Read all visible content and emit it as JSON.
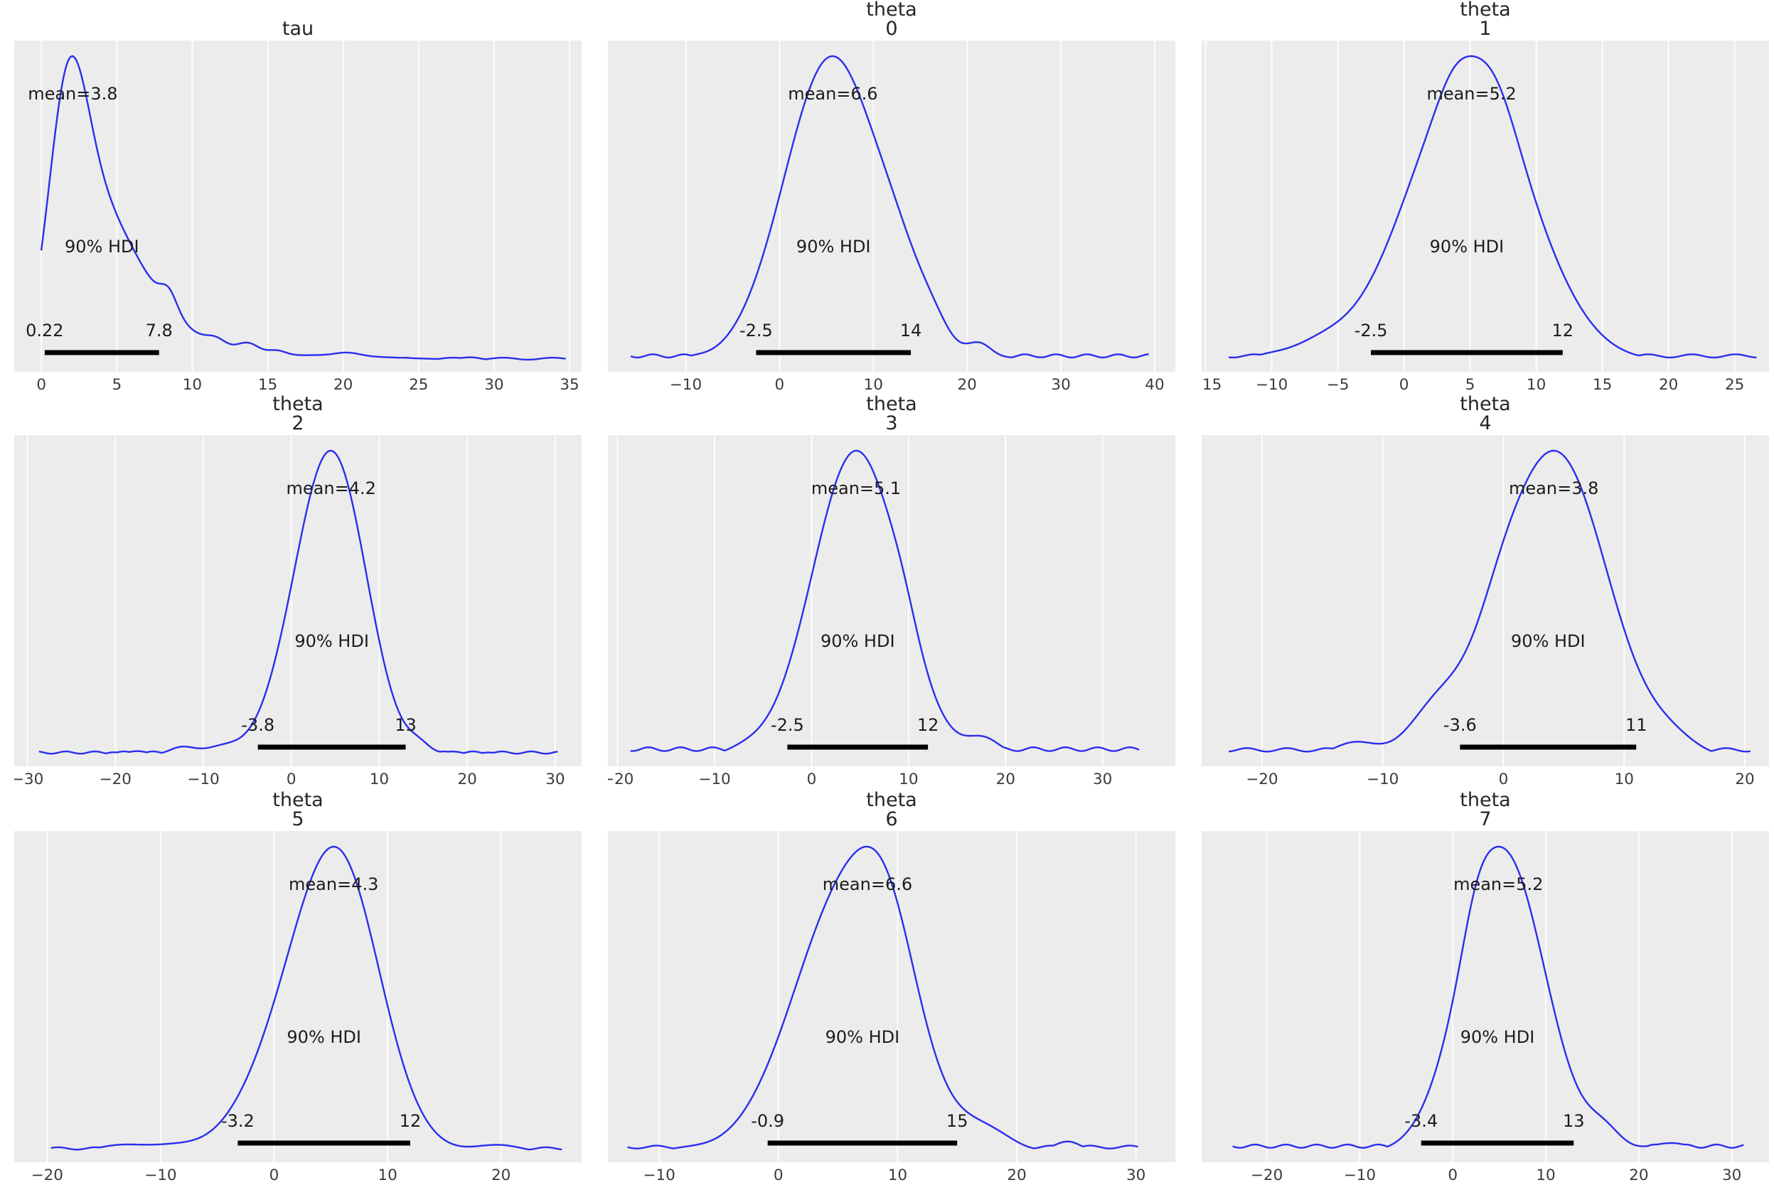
{
  "figure": {
    "background": "#ffffff",
    "plot_bg": "#ececec",
    "grid_color": "#ffffff",
    "curve_color": "#2a2eec",
    "hdi_bar_color": "#000000",
    "annotation_color": "#1c1c1c",
    "tick_color": "#3b3b3b",
    "title_color": "#262626"
  },
  "chart_data": {
    "type": "line",
    "title": "",
    "xlabel": "",
    "ylabel": "",
    "grid": "vertical-white-gridlines",
    "legend_position": "none",
    "plots": [
      {
        "title_lines": [
          "tau"
        ],
        "mean": 3.8,
        "mean_label": "mean=3.8",
        "hdi_text": "90% HDI",
        "hdi_90": [
          0.22,
          7.8
        ],
        "hdi_labels": [
          "0.22",
          "7.8"
        ],
        "x_ticks": [
          0,
          5,
          10,
          15,
          20,
          25,
          30,
          35
        ],
        "x_tick_labels": [
          "0",
          "5",
          "10",
          "15",
          "20",
          "25",
          "30",
          "35"
        ],
        "xlim": [
          -1.8,
          35.8
        ],
        "curve_domain": [
          0.0,
          34.7
        ],
        "floor": 0.02,
        "kde_components": [
          {
            "mu": 1.7,
            "s": 1.3,
            "w": 1.0
          },
          {
            "mu": 3.6,
            "s": 1.8,
            "w": 0.5
          },
          {
            "mu": 6.2,
            "s": 2.0,
            "w": 0.26
          },
          {
            "mu": 8.45,
            "s": 0.55,
            "w": 0.08
          },
          {
            "mu": 9.2,
            "s": 2.4,
            "w": 0.1
          },
          {
            "mu": 11.6,
            "s": 0.65,
            "w": 0.035
          },
          {
            "mu": 13.7,
            "s": 0.75,
            "w": 0.05
          },
          {
            "mu": 15.6,
            "s": 0.6,
            "w": 0.022
          },
          {
            "mu": 17.0,
            "s": 4.0,
            "w": 0.025
          },
          {
            "mu": 20.3,
            "s": 0.8,
            "w": 0.014
          },
          {
            "mu": 24.0,
            "s": 6.0,
            "w": 0.018
          },
          {
            "mu": 28.5,
            "s": 0.7,
            "w": 0.012
          }
        ]
      },
      {
        "title_lines": [
          "theta",
          "0"
        ],
        "mean": 6.6,
        "mean_label": "mean=6.6",
        "hdi_text": "90% HDI",
        "hdi_90": [
          -2.5,
          14
        ],
        "hdi_labels": [
          "-2.5",
          "14"
        ],
        "x_ticks": [
          -10,
          0,
          10,
          20,
          30,
          40
        ],
        "x_tick_labels": [
          "−10",
          "0",
          "10",
          "20",
          "30",
          "40"
        ],
        "xlim": [
          -18.3,
          42.2
        ],
        "curve_domain": [
          -15.8,
          39.3
        ],
        "floor": 0.024,
        "kde_components": [
          {
            "mu": 5.6,
            "s": 5.1,
            "w": 1.0
          },
          {
            "mu": 13.0,
            "s": 2.5,
            "w": 0.12
          },
          {
            "mu": 16.5,
            "s": 1.8,
            "w": 0.06
          },
          {
            "mu": 21.3,
            "s": 1.3,
            "w": 0.05
          },
          {
            "mu": 27.0,
            "s": 4.0,
            "w": 0.02
          },
          {
            "mu": 33.5,
            "s": 1.5,
            "w": 0.014
          },
          {
            "mu": -9.5,
            "s": 1.5,
            "w": 0.012
          }
        ]
      },
      {
        "title_lines": [
          "theta",
          "1"
        ],
        "mean": 5.2,
        "mean_label": "mean=5.2",
        "hdi_text": "90% HDI",
        "hdi_90": [
          -2.5,
          12
        ],
        "hdi_labels": [
          "-2.5",
          "12"
        ],
        "x_ticks": [
          -15,
          -10,
          -5,
          0,
          5,
          10,
          15,
          20,
          25
        ],
        "x_tick_labels": [
          "−15",
          "−10",
          "−5",
          "0",
          "5",
          "10",
          "15",
          "20",
          "25"
        ],
        "xlim": [
          -15.3,
          27.6
        ],
        "curve_domain": [
          -13.2,
          26.6
        ],
        "floor": 0.026,
        "kde_components": [
          {
            "mu": 4.9,
            "s": 4.7,
            "w": 1.0
          },
          {
            "mu": 6.8,
            "s": 1.6,
            "w": 0.1
          },
          {
            "mu": 3.8,
            "s": 1.2,
            "w": 0.06
          },
          {
            "mu": -6.5,
            "s": 2.2,
            "w": 0.05
          },
          {
            "mu": -10.5,
            "s": 1.5,
            "w": 0.02
          },
          {
            "mu": 22.0,
            "s": 2.5,
            "w": 0.015
          }
        ]
      },
      {
        "title_lines": [
          "theta",
          "2"
        ],
        "mean": 4.2,
        "mean_label": "mean=4.2",
        "hdi_text": "90% HDI",
        "hdi_90": [
          -3.8,
          13
        ],
        "hdi_labels": [
          "-3.8",
          "13"
        ],
        "x_ticks": [
          -30,
          -20,
          -10,
          0,
          10,
          20,
          30
        ],
        "x_tick_labels": [
          "−30",
          "−20",
          "−10",
          "0",
          "10",
          "20",
          "30"
        ],
        "xlim": [
          -31.5,
          33.0
        ],
        "curve_domain": [
          -28.6,
          30.2
        ],
        "floor": 0.028,
        "kde_components": [
          {
            "mu": 2.9,
            "s": 3.9,
            "w": 0.92
          },
          {
            "mu": 5.9,
            "s": 3.6,
            "w": 0.86
          },
          {
            "mu": -8.0,
            "s": 2.0,
            "w": 0.05
          },
          {
            "mu": -12.5,
            "s": 1.6,
            "w": 0.055
          },
          {
            "mu": -17.5,
            "s": 1.4,
            "w": 0.035
          },
          {
            "mu": -20.5,
            "s": 1.0,
            "w": 0.025
          },
          {
            "mu": 14.6,
            "s": 1.3,
            "w": 0.05
          },
          {
            "mu": 18.5,
            "s": 1.2,
            "w": 0.03
          },
          {
            "mu": 22.5,
            "s": 1.5,
            "w": 0.028
          },
          {
            "mu": 27.5,
            "s": 1.3,
            "w": 0.022
          }
        ]
      },
      {
        "title_lines": [
          "theta",
          "3"
        ],
        "mean": 5.1,
        "mean_label": "mean=5.1",
        "hdi_text": "90% HDI",
        "hdi_90": [
          -2.5,
          12
        ],
        "hdi_labels": [
          "-2.5",
          "12"
        ],
        "x_ticks": [
          -20,
          -10,
          0,
          10,
          20,
          30
        ],
        "x_tick_labels": [
          "−20",
          "−10",
          "0",
          "10",
          "20",
          "30"
        ],
        "xlim": [
          -21.0,
          37.5
        ],
        "curve_domain": [
          -18.6,
          33.7
        ],
        "floor": 0.028,
        "kde_components": [
          {
            "mu": 4.6,
            "s": 4.5,
            "w": 1.0
          },
          {
            "mu": 9.5,
            "s": 1.5,
            "w": 0.05
          },
          {
            "mu": 17.8,
            "s": 1.7,
            "w": 0.055
          },
          {
            "mu": -7.0,
            "s": 2.0,
            "w": 0.02
          },
          {
            "mu": 25.0,
            "s": 3.0,
            "w": 0.012
          }
        ]
      },
      {
        "title_lines": [
          "theta",
          "4"
        ],
        "mean": 3.8,
        "mean_label": "mean=3.8",
        "hdi_text": "90% HDI",
        "hdi_90": [
          -3.6,
          11
        ],
        "hdi_labels": [
          "-3.6",
          "11"
        ],
        "x_ticks": [
          -20,
          -10,
          0,
          10,
          20
        ],
        "x_tick_labels": [
          "−20",
          "−10",
          "0",
          "10",
          "20"
        ],
        "xlim": [
          -25.0,
          22.0
        ],
        "curve_domain": [
          -22.7,
          20.4
        ],
        "floor": 0.026,
        "kde_components": [
          {
            "mu": 4.3,
            "s": 4.3,
            "w": 1.0
          },
          {
            "mu": -0.5,
            "s": 2.0,
            "w": 0.1
          },
          {
            "mu": -5.5,
            "s": 2.3,
            "w": 0.14
          },
          {
            "mu": -12.3,
            "s": 1.8,
            "w": 0.05
          },
          {
            "mu": 14.0,
            "s": 2.0,
            "w": 0.04
          }
        ]
      },
      {
        "title_lines": [
          "theta",
          "5"
        ],
        "mean": 4.3,
        "mean_label": "mean=4.3",
        "hdi_text": "90% HDI",
        "hdi_90": [
          -3.2,
          12
        ],
        "hdi_labels": [
          "-3.2",
          "12"
        ],
        "x_ticks": [
          -20,
          -10,
          0,
          10,
          20
        ],
        "x_tick_labels": [
          "−20",
          "−10",
          "0",
          "10",
          "20"
        ],
        "xlim": [
          -22.9,
          27.1
        ],
        "curve_domain": [
          -19.6,
          25.3
        ],
        "floor": 0.028,
        "kde_components": [
          {
            "mu": 3.7,
            "s": 4.5,
            "w": 0.93
          },
          {
            "mu": 6.3,
            "s": 3.4,
            "w": 0.78
          },
          {
            "mu": -13.5,
            "s": 2.3,
            "w": 0.045
          },
          {
            "mu": -9.0,
            "s": 2.0,
            "w": 0.03
          },
          {
            "mu": 19.8,
            "s": 2.2,
            "w": 0.045
          }
        ]
      },
      {
        "title_lines": [
          "theta",
          "6"
        ],
        "mean": 6.6,
        "mean_label": "mean=6.6",
        "hdi_text": "90% HDI",
        "hdi_90": [
          -0.9,
          15
        ],
        "hdi_labels": [
          "-0.9",
          "15"
        ],
        "x_ticks": [
          -10,
          0,
          10,
          20,
          30
        ],
        "x_tick_labels": [
          "−10",
          "0",
          "10",
          "20",
          "30"
        ],
        "xlim": [
          -14.3,
          33.3
        ],
        "curve_domain": [
          -12.6,
          30.1
        ],
        "floor": 0.025,
        "kde_components": [
          {
            "mu": 5.9,
            "s": 4.6,
            "w": 1.0
          },
          {
            "mu": 9.3,
            "s": 2.4,
            "w": 0.28
          },
          {
            "mu": 17.5,
            "s": 2.2,
            "w": 0.07
          },
          {
            "mu": 24.3,
            "s": 1.2,
            "w": 0.045
          },
          {
            "mu": -8.0,
            "s": 1.8,
            "w": 0.015
          }
        ]
      },
      {
        "title_lines": [
          "theta",
          "7"
        ],
        "mean": 5.2,
        "mean_label": "mean=5.2",
        "hdi_text": "90% HDI",
        "hdi_90": [
          -3.4,
          13
        ],
        "hdi_labels": [
          "-3.4",
          "13"
        ],
        "x_ticks": [
          -20,
          -10,
          0,
          10,
          20,
          30
        ],
        "x_tick_labels": [
          "−20",
          "−10",
          "0",
          "10",
          "20",
          "30"
        ],
        "xlim": [
          -27.0,
          34.0
        ],
        "curve_domain": [
          -23.6,
          31.2
        ],
        "floor": 0.025,
        "kde_components": [
          {
            "mu": 5.4,
            "s": 4.5,
            "w": 1.0
          },
          {
            "mu": 2.5,
            "s": 1.5,
            "w": 0.08
          },
          {
            "mu": 16.3,
            "s": 1.8,
            "w": 0.06
          },
          {
            "mu": 23.5,
            "s": 2.5,
            "w": 0.035
          },
          {
            "mu": -14.0,
            "s": 3.0,
            "w": 0.02
          },
          {
            "mu": -20.0,
            "s": 1.5,
            "w": 0.015
          }
        ]
      }
    ]
  }
}
